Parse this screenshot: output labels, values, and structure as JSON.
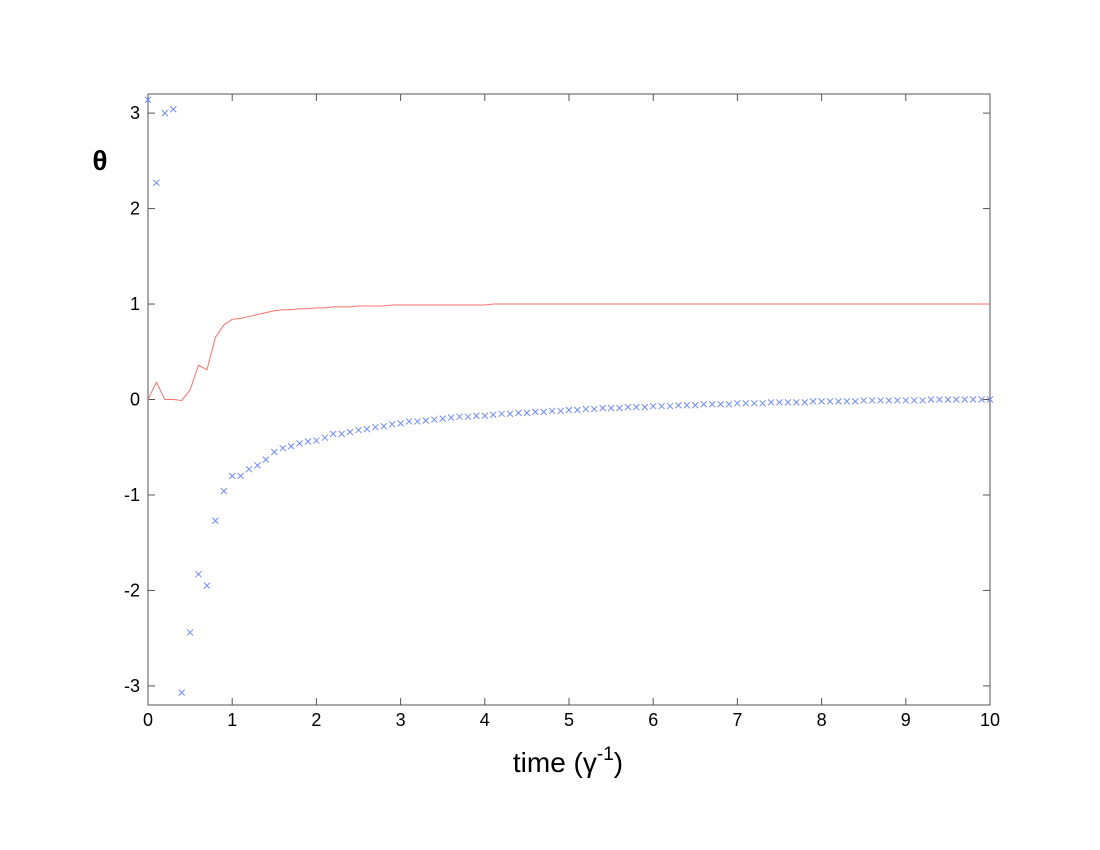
{
  "chart_data": {
    "type": "line_scatter",
    "ylabel": "θ",
    "xlabel": [
      "time (γ",
      "-1",
      ")"
    ],
    "x": [
      0,
      0.1,
      0.2,
      0.3,
      0.4,
      0.5,
      0.6,
      0.7,
      0.8,
      0.9,
      1,
      1.1,
      1.2,
      1.3,
      1.4,
      1.5,
      1.6,
      1.7,
      1.8,
      1.9,
      2,
      2.1,
      2.2,
      2.3,
      2.4,
      2.5,
      2.6,
      2.7,
      2.8,
      2.9,
      3,
      3.1,
      3.2,
      3.3,
      3.4,
      3.5,
      3.6,
      3.7,
      3.8,
      3.9,
      4,
      4.1,
      4.2,
      4.3,
      4.4,
      4.5,
      4.6,
      4.7,
      4.8,
      4.9,
      5,
      5.1,
      5.2,
      5.3,
      5.4,
      5.5,
      5.6,
      5.7,
      5.8,
      5.9,
      6,
      6.1,
      6.2,
      6.3,
      6.4,
      6.5,
      6.6,
      6.7,
      6.8,
      6.9,
      7,
      7.1,
      7.2,
      7.3,
      7.4,
      7.5,
      7.6,
      7.7,
      7.8,
      7.9,
      8,
      8.1,
      8.2,
      8.3,
      8.4,
      8.5,
      8.6,
      8.7,
      8.8,
      8.9,
      9,
      9.1,
      9.2,
      9.3,
      9.4,
      9.5,
      9.6,
      9.7,
      9.8,
      9.9,
      10
    ],
    "series": [
      {
        "style": "line",
        "color": "#ff7070",
        "values": [
          0,
          0.18,
          0,
          0,
          -0.01,
          0.1,
          0.36,
          0.31,
          0.65,
          0.78,
          0.84,
          0.85,
          0.87,
          0.89,
          0.91,
          0.93,
          0.94,
          0.94,
          0.95,
          0.95,
          0.96,
          0.96,
          0.97,
          0.97,
          0.97,
          0.98,
          0.98,
          0.98,
          0.98,
          0.99,
          0.99,
          0.99,
          0.99,
          0.99,
          0.99,
          0.99,
          0.99,
          0.99,
          0.99,
          0.99,
          0.99,
          1,
          1,
          1,
          1,
          1,
          1,
          1,
          1,
          1,
          1,
          1,
          1,
          1,
          1,
          1,
          1,
          1,
          1,
          1,
          1,
          1,
          1,
          1,
          1,
          1,
          1,
          1,
          1,
          1,
          1,
          1,
          1,
          1,
          1,
          1,
          1,
          1,
          1,
          1,
          1,
          1,
          1,
          1,
          1,
          1,
          1,
          1,
          1,
          1,
          1,
          1,
          1,
          1,
          1,
          1,
          1,
          1,
          1,
          1,
          1
        ]
      },
      {
        "style": "cross",
        "color": "#6f8cff",
        "values": [
          3.14,
          2.27,
          3.0,
          3.04,
          -3.07,
          -2.44,
          -1.83,
          -1.95,
          -1.27,
          -0.96,
          -0.8,
          -0.8,
          -0.73,
          -0.69,
          -0.63,
          -0.55,
          -0.51,
          -0.49,
          -0.46,
          -0.44,
          -0.43,
          -0.4,
          -0.36,
          -0.36,
          -0.34,
          -0.32,
          -0.31,
          -0.29,
          -0.28,
          -0.26,
          -0.25,
          -0.23,
          -0.23,
          -0.22,
          -0.21,
          -0.2,
          -0.19,
          -0.18,
          -0.18,
          -0.17,
          -0.17,
          -0.16,
          -0.15,
          -0.15,
          -0.14,
          -0.14,
          -0.13,
          -0.13,
          -0.12,
          -0.12,
          -0.11,
          -0.11,
          -0.1,
          -0.1,
          -0.09,
          -0.09,
          -0.09,
          -0.08,
          -0.08,
          -0.08,
          -0.07,
          -0.07,
          -0.07,
          -0.06,
          -0.06,
          -0.06,
          -0.05,
          -0.05,
          -0.05,
          -0.05,
          -0.04,
          -0.04,
          -0.04,
          -0.04,
          -0.03,
          -0.03,
          -0.03,
          -0.03,
          -0.03,
          -0.02,
          -0.02,
          -0.02,
          -0.02,
          -0.02,
          -0.02,
          -0.01,
          -0.01,
          -0.01,
          -0.01,
          -0.01,
          -0.01,
          -0.01,
          -0.01,
          0,
          0,
          0,
          0,
          0,
          0,
          0,
          0
        ]
      }
    ],
    "xlim": [
      0,
      10
    ],
    "xticks": [
      0,
      1,
      2,
      3,
      4,
      5,
      6,
      7,
      8,
      9,
      10
    ],
    "ylim": [
      -3.2,
      3.2
    ],
    "yticks": [
      -3,
      -2,
      -1,
      0,
      1,
      2,
      3
    ],
    "grid": false
  }
}
